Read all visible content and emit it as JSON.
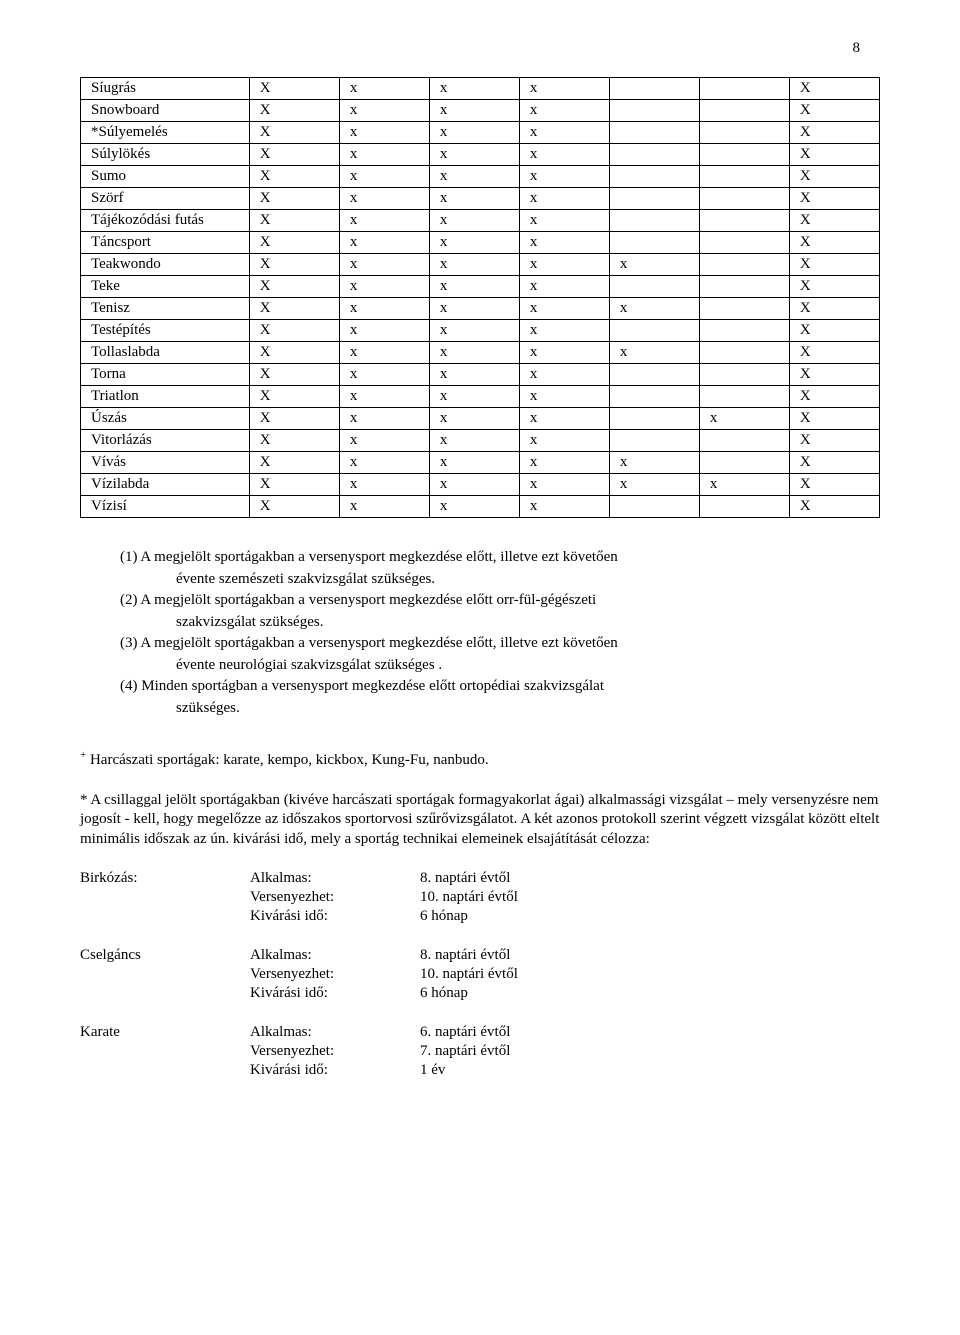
{
  "page_number": "8",
  "table": {
    "rows": [
      {
        "name": "Síugrás",
        "cells": [
          "X",
          "x",
          "x",
          "x",
          "",
          "",
          "X"
        ]
      },
      {
        "name": "Snowboard",
        "cells": [
          "X",
          "x",
          "x",
          "x",
          "",
          "",
          "X"
        ]
      },
      {
        "name": "*Súlyemelés",
        "cells": [
          "X",
          "x",
          "x",
          "x",
          "",
          "",
          "X"
        ]
      },
      {
        "name": "Súlylökés",
        "cells": [
          "X",
          "x",
          "x",
          "x",
          "",
          "",
          "X"
        ]
      },
      {
        "name": "Sumo",
        "cells": [
          "X",
          "x",
          "x",
          "x",
          "",
          "",
          "X"
        ]
      },
      {
        "name": "Szörf",
        "cells": [
          "X",
          "x",
          "x",
          "x",
          "",
          "",
          "X"
        ]
      },
      {
        "name": "Tájékozódási futás",
        "cells": [
          "X",
          "x",
          "x",
          "x",
          "",
          "",
          "X"
        ]
      },
      {
        "name": "Táncsport",
        "cells": [
          "X",
          "x",
          "x",
          "x",
          "",
          "",
          "X"
        ]
      },
      {
        "name": "Teakwondo",
        "cells": [
          "X",
          "x",
          "x",
          "x",
          "x",
          "",
          "X"
        ]
      },
      {
        "name": "Teke",
        "cells": [
          "X",
          "x",
          "x",
          "x",
          "",
          "",
          "X"
        ]
      },
      {
        "name": "Tenisz",
        "cells": [
          "X",
          "x",
          "x",
          "x",
          "x",
          "",
          "X"
        ]
      },
      {
        "name": "Testépítés",
        "cells": [
          "X",
          "x",
          "x",
          "x",
          "",
          "",
          "X"
        ]
      },
      {
        "name": "Tollaslabda",
        "cells": [
          "X",
          "x",
          "x",
          "x",
          "x",
          "",
          "X"
        ]
      },
      {
        "name": "Torna",
        "cells": [
          "X",
          "x",
          "x",
          "x",
          "",
          "",
          "X"
        ]
      },
      {
        "name": "Triatlon",
        "cells": [
          "X",
          "x",
          "x",
          "x",
          "",
          "",
          "X"
        ]
      },
      {
        "name": "Úszás",
        "cells": [
          "X",
          "x",
          "x",
          "x",
          "",
          "x",
          "X"
        ]
      },
      {
        "name": "Vitorlázás",
        "cells": [
          "X",
          "x",
          "x",
          "x",
          "",
          "",
          "X"
        ]
      },
      {
        "name": "Vívás",
        "cells": [
          "X",
          "x",
          "x",
          "x",
          "x",
          "",
          "X"
        ]
      },
      {
        "name": "Vízilabda",
        "cells": [
          "X",
          "x",
          "x",
          "x",
          "x",
          "x",
          "X"
        ]
      },
      {
        "name": "Vízisí",
        "cells": [
          "X",
          "x",
          "x",
          "x",
          "",
          "",
          "X"
        ]
      }
    ]
  },
  "notes": {
    "n1a": "(1)  A megjelölt sportágakban a versenysport megkezdése előtt, illetve ezt követően",
    "n1b": "évente  szemészeti szakvizsgálat  szükséges.",
    "n2a": "(2)  A megjelölt sportágakban a versenysport megkezdése előtt orr-fül-gégészeti",
    "n2b": "szakvizsgálat szükséges.",
    "n3a": "(3)  A megjelölt sportágakban a versenysport megkezdése előtt, illetve ezt követően",
    "n3b": "évente neurológiai szakvizsgálat szükséges .",
    "n4a": "(4)  Minden sportágban a versenysport megkezdése előtt ortopédiai szakvizsgálat",
    "n4b": "szükséges."
  },
  "footnote": {
    "sup": "+",
    "f1": " Harcászati sportágak: karate, kempo, kickbox, Kung-Fu, nanbudo."
  },
  "para": "*  A csillaggal jelölt sportágakban (kivéve harcászati sportágak formagyakorlat ágai) alkalmassági vizsgálat – mely versenyzésre nem jogosít - kell, hogy megelőzze az időszakos sportorvosi szűrővizsgálatot. A két azonos protokoll szerint végzett vizsgálat között eltelt minimális időszak az ún. kivárási idő, mely a sportág technikai elemeinek elsajátítását célozza:",
  "schedule": [
    {
      "sport": "Birkózás:",
      "rows": [
        {
          "label": "Alkalmas:",
          "val": "8. naptári évtől"
        },
        {
          "label": "Versenyezhet:",
          "val": "10. naptári évtől"
        },
        {
          "label": "Kivárási idő:",
          "val": "6 hónap"
        }
      ]
    },
    {
      "sport": "Cselgáncs",
      "rows": [
        {
          "label": "Alkalmas:",
          "val": "8. naptári évtől"
        },
        {
          "label": "Versenyezhet:",
          "val": "10. naptári évtől"
        },
        {
          "label": "Kivárási idő:",
          "val": "6 hónap"
        }
      ]
    },
    {
      "sport": "Karate",
      "rows": [
        {
          "label": "Alkalmas:",
          "val": "6. naptári évtől"
        },
        {
          "label": "Versenyezhet:",
          "val": "7. naptári évtől"
        },
        {
          "label": "Kivárási idő:",
          "val": "1 év"
        }
      ]
    }
  ]
}
